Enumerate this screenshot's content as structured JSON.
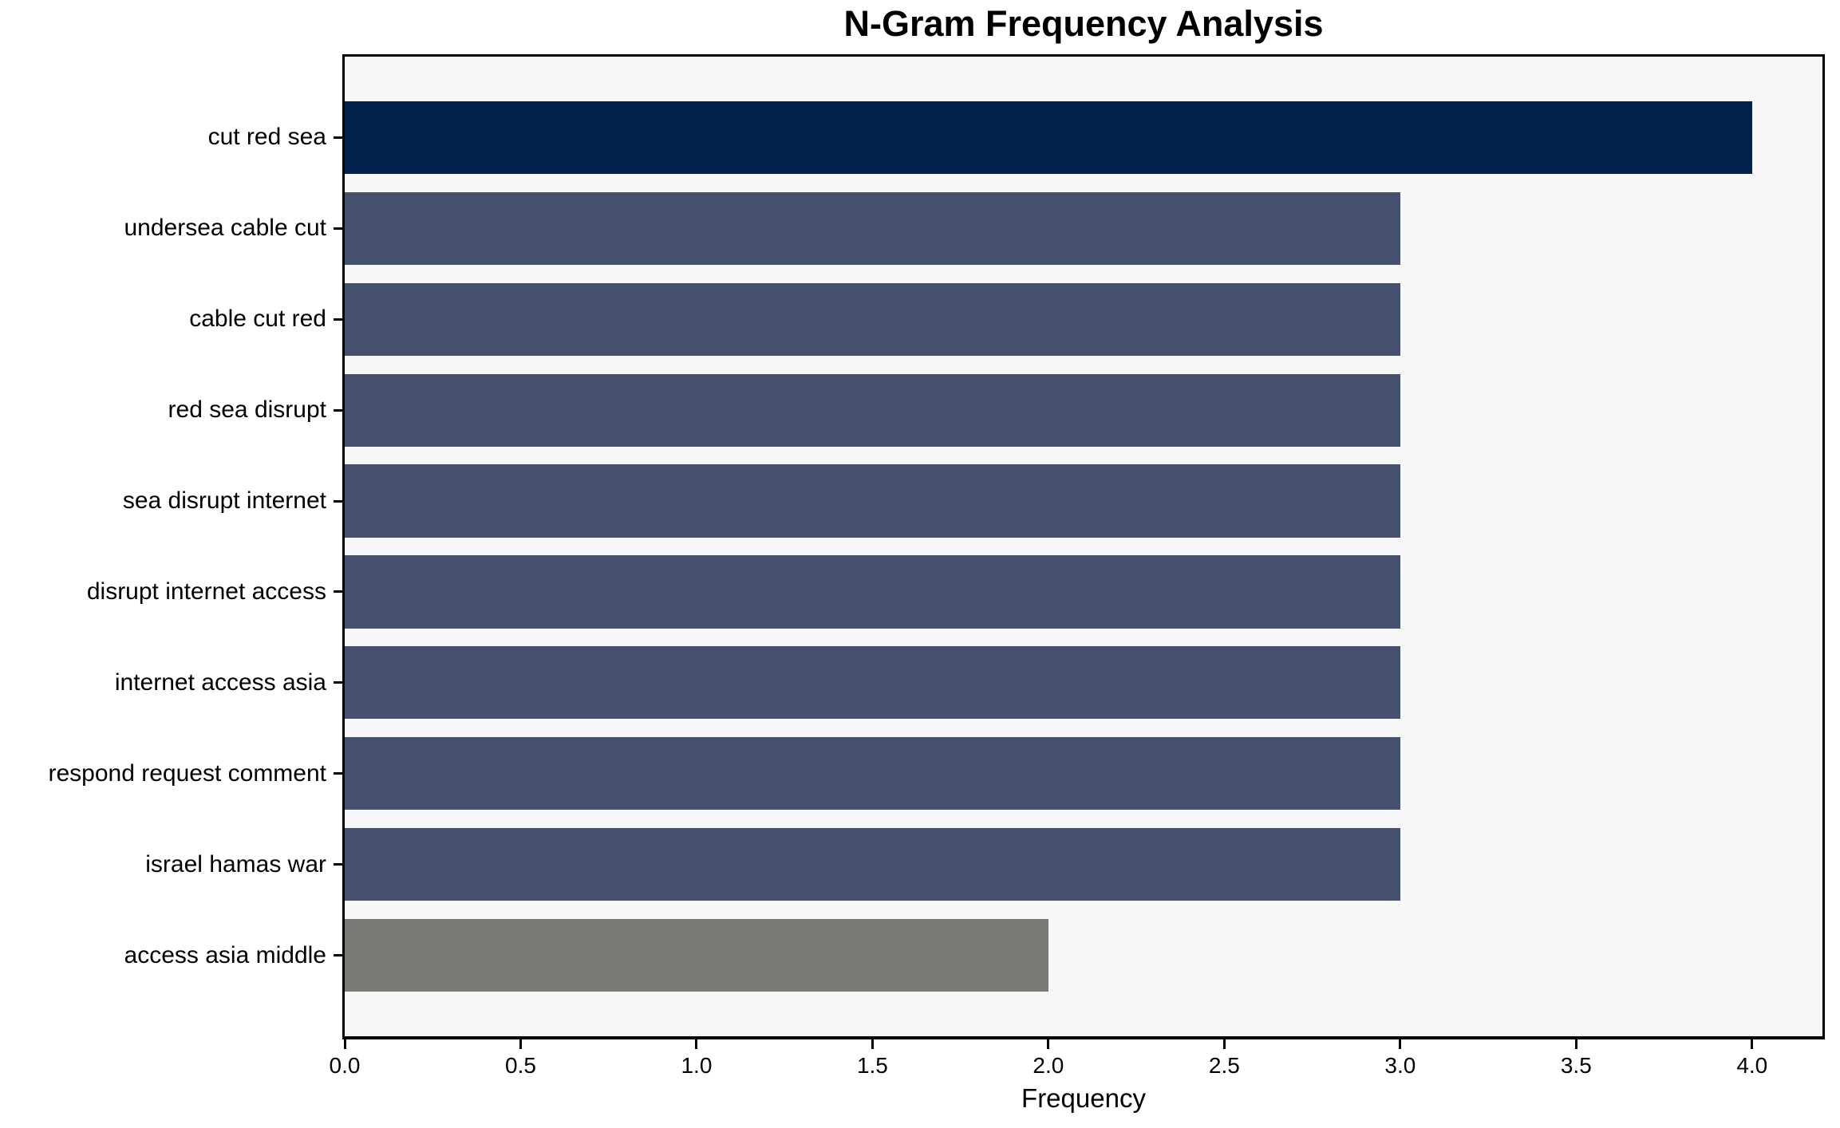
{
  "chart_data": {
    "type": "bar",
    "orientation": "horizontal",
    "title": "N-Gram Frequency Analysis",
    "xlabel": "Frequency",
    "ylabel": "",
    "categories": [
      "cut red sea",
      "undersea cable cut",
      "cable cut red",
      "red sea disrupt",
      "sea disrupt internet",
      "disrupt internet access",
      "internet access asia",
      "respond request comment",
      "israel hamas war",
      "access asia middle"
    ],
    "values": [
      4,
      3,
      3,
      3,
      3,
      3,
      3,
      3,
      3,
      2
    ],
    "bar_colors": [
      "#02224e",
      "#45506e",
      "#45506e",
      "#45506e",
      "#45506e",
      "#45506e",
      "#45506e",
      "#45506e",
      "#45506e",
      "#7b7a77"
    ],
    "xlim": [
      0,
      4.2
    ],
    "xtick_labels": [
      "0.0",
      "0.5",
      "1.0",
      "1.5",
      "2.0",
      "2.5",
      "3.0",
      "3.5",
      "4.0"
    ],
    "grid": false,
    "legend": null,
    "plot_background": "#f7f7f7",
    "figure_background": "#ffffff"
  }
}
